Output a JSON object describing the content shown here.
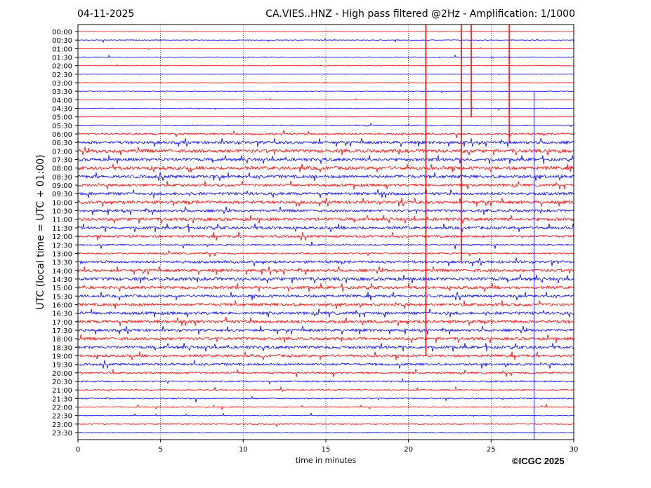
{
  "header": {
    "date": "04-11-2025",
    "title": "CA.VIES..HNZ - High pass filtered @2Hz - Amplification: 1/1000"
  },
  "footer": {
    "copyright": "©ICGC 2025"
  },
  "chart_data": {
    "type": "line",
    "title": "CA.VIES..HNZ - High pass filtered @2Hz - Amplification: 1/1000",
    "xlabel": "time in minutes",
    "ylabel": "UTC (local time = UTC + 01:00)",
    "xlim": [
      0,
      30
    ],
    "xticks": [
      "0",
      "5",
      "10",
      "15",
      "20",
      "25",
      "30"
    ],
    "grid": "vertical dotted every 5 minutes",
    "colors": {
      "even_rows": "#ff0000",
      "odd_rows": "#0000ff"
    },
    "rows": [
      "00:00",
      "00:30",
      "01:00",
      "01:30",
      "02:00",
      "02:30",
      "03:00",
      "03:30",
      "04:00",
      "04:30",
      "05:00",
      "05:30",
      "06:00",
      "06:30",
      "07:00",
      "07:30",
      "08:00",
      "08:30",
      "09:00",
      "09:30",
      "10:00",
      "10:30",
      "11:00",
      "11:30",
      "12:00",
      "12:30",
      "13:00",
      "13:30",
      "14:00",
      "14:30",
      "15:00",
      "15:30",
      "16:00",
      "16:30",
      "17:00",
      "17:30",
      "18:00",
      "18:30",
      "19:00",
      "19:30",
      "20:00",
      "20:30",
      "21:00",
      "21:30",
      "22:00",
      "22:30",
      "23:00",
      "23:30"
    ],
    "noise_level": [
      0.3,
      0.6,
      0.3,
      0.6,
      0.5,
      0.3,
      0.3,
      0.5,
      0.4,
      0.6,
      0.4,
      1.0,
      1.6,
      2.4,
      2.8,
      2.6,
      2.8,
      2.6,
      2.2,
      2.4,
      2.6,
      2.2,
      2.6,
      2.4,
      2.0,
      1.4,
      1.4,
      2.2,
      2.4,
      2.8,
      2.4,
      2.2,
      2.4,
      2.4,
      2.6,
      2.2,
      2.4,
      2.4,
      2.2,
      2.0,
      1.6,
      1.4,
      1.0,
      1.0,
      0.9,
      0.6,
      0.8,
      0.5
    ],
    "events": [
      {
        "minute": 21.05,
        "from_row": 0,
        "to_row": 38,
        "color": "#ff0000"
      },
      {
        "minute": 23.2,
        "from_row": 0,
        "to_row": 27,
        "color": "#ff0000"
      },
      {
        "minute": 23.8,
        "from_row": 0,
        "to_row": 10,
        "color": "#ff0000"
      },
      {
        "minute": 26.1,
        "from_row": 0,
        "to_row": 13,
        "color": "#ff0000"
      },
      {
        "minute": 27.6,
        "from_row": 7,
        "to_row": 47,
        "color": "#0000ff"
      }
    ]
  }
}
